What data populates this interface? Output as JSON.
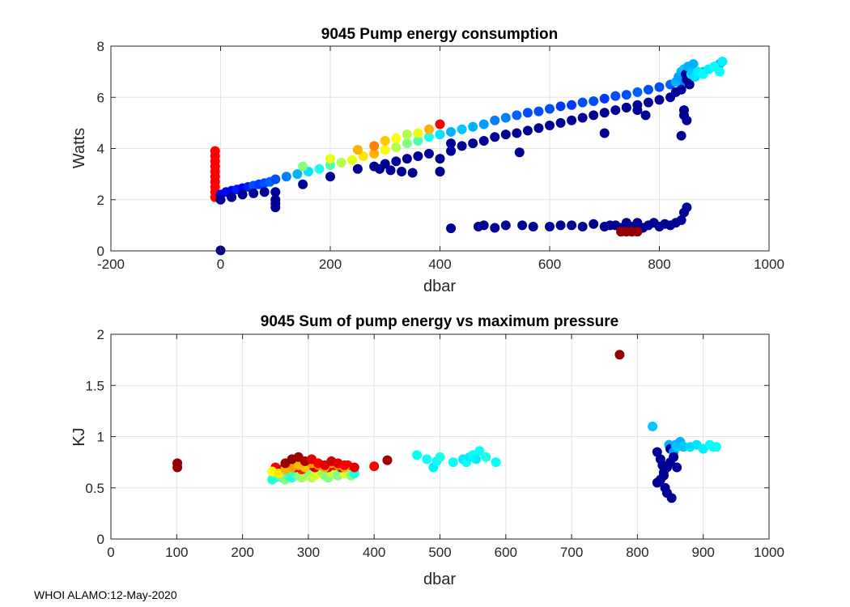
{
  "footer": {
    "text": "WHOI ALAMO:12-May-2020"
  },
  "chart_data": [
    {
      "type": "scatter",
      "title": "9045 Pump energy consumption",
      "xlabel": "dbar",
      "ylabel": "Watts",
      "xlim": [
        -200,
        1000
      ],
      "ylim": [
        0,
        8
      ],
      "xticks": [
        -200,
        0,
        200,
        400,
        600,
        800,
        1000
      ],
      "yticks": [
        0,
        2,
        4,
        6,
        8
      ],
      "xtick_labels": [
        "-200",
        "0",
        "200",
        "400",
        "600",
        "800",
        "1000"
      ],
      "ytick_labels": [
        "0",
        "2",
        "4",
        "6",
        "8"
      ],
      "grid": true,
      "colorscale": "jet (value per point, 0=dark blue .. 1=dark red)",
      "series": [
        {
          "name": "surface red column",
          "x": [
            -10,
            -10,
            -10,
            -10,
            -10,
            -10,
            -10,
            -10,
            -10,
            -10
          ],
          "y": [
            2.1,
            2.3,
            2.5,
            2.7,
            2.9,
            3.1,
            3.3,
            3.5,
            3.7,
            3.9
          ],
          "c": [
            0.88,
            0.88,
            0.88,
            0.88,
            0.88,
            0.88,
            0.88,
            0.88,
            0.88,
            0.88
          ]
        },
        {
          "name": "main trend",
          "x": [
            0,
            10,
            20,
            30,
            40,
            50,
            60,
            70,
            80,
            90,
            100,
            120,
            140,
            160,
            180,
            200,
            220,
            240,
            260,
            280,
            300,
            320,
            340,
            360,
            380,
            400,
            420,
            440,
            460,
            480,
            500,
            520,
            540,
            560,
            580,
            600,
            620,
            640,
            660,
            680,
            700,
            720,
            740,
            760,
            780,
            800,
            820,
            840,
            860,
            880,
            900,
            910
          ],
          "y": [
            2.2,
            2.3,
            2.35,
            2.4,
            2.45,
            2.5,
            2.55,
            2.6,
            2.65,
            2.7,
            2.8,
            2.9,
            3.0,
            3.1,
            3.2,
            3.35,
            3.45,
            3.55,
            3.7,
            3.8,
            3.95,
            4.05,
            4.2,
            4.3,
            4.45,
            4.55,
            4.65,
            4.75,
            4.85,
            4.95,
            5.1,
            5.2,
            5.3,
            5.4,
            5.45,
            5.55,
            5.65,
            5.7,
            5.8,
            5.85,
            5.95,
            6.05,
            6.1,
            6.2,
            6.3,
            6.4,
            6.5,
            6.6,
            6.8,
            7.0,
            7.2,
            7.3
          ],
          "c": [
            0.1,
            0.12,
            0.12,
            0.15,
            0.12,
            0.15,
            0.2,
            0.18,
            0.2,
            0.22,
            0.2,
            0.25,
            0.3,
            0.35,
            0.4,
            0.45,
            0.55,
            0.6,
            0.65,
            0.7,
            0.62,
            0.55,
            0.5,
            0.45,
            0.4,
            0.35,
            0.3,
            0.32,
            0.3,
            0.28,
            0.25,
            0.25,
            0.22,
            0.2,
            0.2,
            0.2,
            0.18,
            0.18,
            0.2,
            0.2,
            0.18,
            0.2,
            0.2,
            0.22,
            0.2,
            0.2,
            0.22,
            0.25,
            0.3,
            0.32,
            0.32,
            0.3
          ]
        },
        {
          "name": "upper colored band",
          "x": [
            150,
            200,
            250,
            280,
            300,
            320,
            340,
            360,
            380,
            400
          ],
          "y": [
            3.3,
            3.6,
            3.95,
            4.1,
            4.3,
            4.4,
            4.55,
            4.6,
            4.75,
            4.95
          ],
          "c": [
            0.5,
            0.6,
            0.7,
            0.75,
            0.68,
            0.62,
            0.55,
            0.6,
            0.7,
            0.88
          ]
        },
        {
          "name": "lower trend",
          "x": [
            0,
            20,
            40,
            60,
            80,
            100,
            100,
            100,
            100,
            150,
            200,
            250,
            280,
            300,
            320,
            340,
            360,
            380,
            400,
            400,
            420,
            440,
            460,
            480,
            500,
            520,
            540,
            560,
            580,
            600,
            620,
            640,
            660,
            680,
            700,
            720,
            740,
            760,
            780,
            800,
            820,
            830,
            840,
            845,
            850,
            855,
            860
          ],
          "y": [
            2.0,
            2.1,
            2.2,
            2.25,
            2.3,
            2.3,
            2.0,
            1.85,
            1.7,
            2.6,
            2.9,
            3.2,
            3.3,
            3.4,
            3.5,
            3.6,
            3.7,
            3.8,
            3.1,
            3.6,
            3.9,
            4.1,
            4.2,
            4.3,
            4.45,
            4.55,
            4.6,
            4.7,
            4.8,
            4.9,
            5.0,
            5.1,
            5.2,
            5.3,
            5.4,
            5.5,
            5.6,
            5.7,
            5.8,
            5.9,
            6.0,
            6.2,
            6.3,
            5.5,
            5.1,
            6.8,
            7.0
          ],
          "c": [
            0.02,
            0.02,
            0.02,
            0.02,
            0.02,
            0.02,
            0.02,
            0.02,
            0.02,
            0.02,
            0.02,
            0.02,
            0.02,
            0.02,
            0.02,
            0.02,
            0.02,
            0.02,
            0.02,
            0.02,
            0.02,
            0.02,
            0.02,
            0.02,
            0.02,
            0.02,
            0.02,
            0.02,
            0.02,
            0.02,
            0.02,
            0.02,
            0.02,
            0.02,
            0.02,
            0.02,
            0.02,
            0.02,
            0.02,
            0.02,
            0.02,
            0.02,
            0.02,
            0.02,
            0.02,
            0.02,
            0.02
          ]
        },
        {
          "name": "outliers",
          "x": [
            0,
            290,
            310,
            330,
            350,
            400,
            420,
            545,
            700,
            740,
            760,
            775,
            840,
            845
          ],
          "y": [
            0.02,
            3.2,
            3.15,
            3.1,
            3.05,
            3.1,
            4.2,
            3.85,
            4.6,
            5.6,
            5.5,
            5.3,
            4.5,
            5.3
          ],
          "c": [
            0.02,
            0.02,
            0.02,
            0.02,
            0.02,
            0.02,
            0.02,
            0.02,
            0.02,
            0.02,
            0.02,
            0.02,
            0.02,
            0.02
          ]
        },
        {
          "name": "low band",
          "x": [
            420,
            470,
            480,
            500,
            520,
            550,
            570,
            600,
            620,
            640,
            660,
            680,
            700,
            710,
            720,
            730,
            740,
            750,
            760,
            770,
            780,
            790,
            800,
            810,
            820,
            830,
            840,
            845,
            850
          ],
          "y": [
            0.88,
            0.95,
            1.0,
            0.9,
            1.0,
            1.0,
            0.95,
            0.95,
            1.0,
            1.0,
            0.95,
            1.05,
            0.95,
            1.0,
            1.0,
            0.9,
            1.1,
            0.95,
            1.1,
            0.9,
            1.0,
            1.1,
            0.95,
            1.05,
            1.0,
            1.1,
            1.2,
            1.5,
            1.7
          ],
          "c": [
            0.02,
            0.02,
            0.02,
            0.02,
            0.02,
            0.02,
            0.02,
            0.02,
            0.02,
            0.02,
            0.02,
            0.02,
            0.02,
            0.02,
            0.02,
            0.02,
            0.02,
            0.02,
            0.02,
            0.02,
            0.02,
            0.02,
            0.02,
            0.02,
            0.02,
            0.02,
            0.02,
            0.02,
            0.02
          ]
        },
        {
          "name": "low band dark red",
          "x": [
            730,
            740,
            750,
            760
          ],
          "y": [
            0.75,
            0.75,
            0.75,
            0.75
          ],
          "c": [
            0.98,
            0.98,
            0.98,
            0.98
          ]
        },
        {
          "name": "deep cluster",
          "x": [
            830,
            835,
            840,
            845,
            848,
            850,
            852,
            855,
            858,
            860,
            862,
            865,
            870,
            880,
            890,
            900,
            910,
            915
          ],
          "y": [
            6.6,
            6.8,
            7.0,
            7.1,
            6.9,
            6.7,
            7.2,
            6.5,
            6.9,
            7.0,
            7.3,
            6.8,
            7.0,
            6.9,
            7.1,
            7.2,
            7.0,
            7.4
          ],
          "c": [
            0.3,
            0.28,
            0.3,
            0.32,
            0.02,
            0.02,
            0.3,
            0.02,
            0.35,
            0.32,
            0.3,
            0.35,
            0.36,
            0.38,
            0.36,
            0.38,
            0.38,
            0.36
          ]
        }
      ]
    },
    {
      "type": "scatter",
      "title": "9045 Sum of pump energy vs maximum pressure",
      "xlabel": "dbar",
      "ylabel": "KJ",
      "xlim": [
        0,
        1000
      ],
      "ylim": [
        0,
        2
      ],
      "xticks": [
        0,
        100,
        200,
        300,
        400,
        500,
        600,
        700,
        800,
        900,
        1000
      ],
      "yticks": [
        0,
        0.5,
        1,
        1.5,
        2
      ],
      "xtick_labels": [
        "0",
        "100",
        "200",
        "300",
        "400",
        "500",
        "600",
        "700",
        "800",
        "900",
        "1000"
      ],
      "ytick_labels": [
        "0",
        "0.5",
        "1",
        "1.5",
        "2"
      ],
      "grid": true,
      "colorscale": "jet (value per point, 0=dark blue .. 1=dark red)",
      "series": [
        {
          "name": "profiles",
          "x": [
            101,
            101,
            245,
            250,
            255,
            260,
            265,
            270,
            275,
            280,
            285,
            290,
            295,
            300,
            305,
            310,
            315,
            320,
            325,
            330,
            335,
            340,
            345,
            350,
            355,
            360,
            365,
            370,
            250,
            260,
            270,
            280,
            290,
            300,
            310,
            320,
            330,
            340,
            350,
            360,
            370,
            245,
            255,
            265,
            275,
            285,
            295,
            305,
            315,
            325,
            335,
            345,
            355,
            265,
            275,
            285,
            295,
            305,
            315,
            325,
            335,
            345,
            355,
            400,
            420,
            465,
            480,
            490,
            495,
            500,
            520,
            535,
            540,
            545,
            550,
            555,
            560,
            570,
            585,
            773,
            823,
            830,
            835,
            838,
            840,
            842,
            845,
            848,
            850,
            852,
            855,
            858,
            860,
            865,
            870,
            880,
            890,
            900,
            910,
            915,
            920,
            830,
            835,
            840,
            845,
            850,
            855,
            860
          ],
          "y": [
            0.74,
            0.7,
            0.58,
            0.6,
            0.62,
            0.6,
            0.58,
            0.62,
            0.6,
            0.64,
            0.62,
            0.6,
            0.62,
            0.64,
            0.6,
            0.62,
            0.64,
            0.66,
            0.62,
            0.6,
            0.64,
            0.66,
            0.62,
            0.68,
            0.64,
            0.66,
            0.62,
            0.64,
            0.7,
            0.68,
            0.72,
            0.7,
            0.68,
            0.72,
            0.7,
            0.72,
            0.7,
            0.72,
            0.7,
            0.72,
            0.7,
            0.66,
            0.64,
            0.68,
            0.7,
            0.72,
            0.7,
            0.74,
            0.72,
            0.7,
            0.74,
            0.72,
            0.7,
            0.74,
            0.78,
            0.8,
            0.76,
            0.78,
            0.74,
            0.72,
            0.76,
            0.74,
            0.72,
            0.71,
            0.77,
            0.82,
            0.78,
            0.7,
            0.76,
            0.8,
            0.75,
            0.78,
            0.75,
            0.8,
            0.82,
            0.78,
            0.86,
            0.8,
            0.75,
            1.8,
            1.1,
            0.85,
            0.78,
            0.72,
            0.62,
            0.5,
            0.45,
            0.92,
            0.88,
            0.4,
            0.85,
            0.92,
            0.9,
            0.95,
            0.9,
            0.9,
            0.92,
            0.88,
            0.92,
            0.9,
            0.9,
            0.55,
            0.58,
            0.65,
            0.7,
            0.75,
            0.8,
            0.7
          ],
          "c": [
            0.98,
            0.98,
            0.4,
            0.42,
            0.42,
            0.45,
            0.5,
            0.45,
            0.4,
            0.45,
            0.5,
            0.52,
            0.55,
            0.5,
            0.55,
            0.58,
            0.6,
            0.55,
            0.52,
            0.5,
            0.55,
            0.58,
            0.5,
            0.45,
            0.6,
            0.55,
            0.5,
            0.4,
            0.88,
            0.9,
            0.92,
            0.88,
            0.85,
            0.9,
            0.92,
            0.9,
            0.88,
            0.9,
            0.92,
            0.88,
            0.9,
            0.62,
            0.65,
            0.7,
            0.72,
            0.7,
            0.68,
            0.72,
            0.75,
            0.7,
            0.72,
            0.75,
            0.7,
            0.97,
            0.98,
            0.97,
            0.95,
            0.9,
            0.88,
            0.9,
            0.92,
            0.9,
            0.88,
            0.88,
            0.97,
            0.38,
            0.38,
            0.36,
            0.38,
            0.4,
            0.38,
            0.36,
            0.38,
            0.36,
            0.38,
            0.36,
            0.38,
            0.4,
            0.38,
            0.98,
            0.32,
            0.02,
            0.02,
            0.02,
            0.02,
            0.02,
            0.02,
            0.3,
            0.02,
            0.02,
            0.28,
            0.3,
            0.32,
            0.3,
            0.32,
            0.34,
            0.35,
            0.36,
            0.38,
            0.38,
            0.38,
            0.02,
            0.02,
            0.02,
            0.02,
            0.02,
            0.02,
            0.02
          ]
        }
      ]
    }
  ]
}
